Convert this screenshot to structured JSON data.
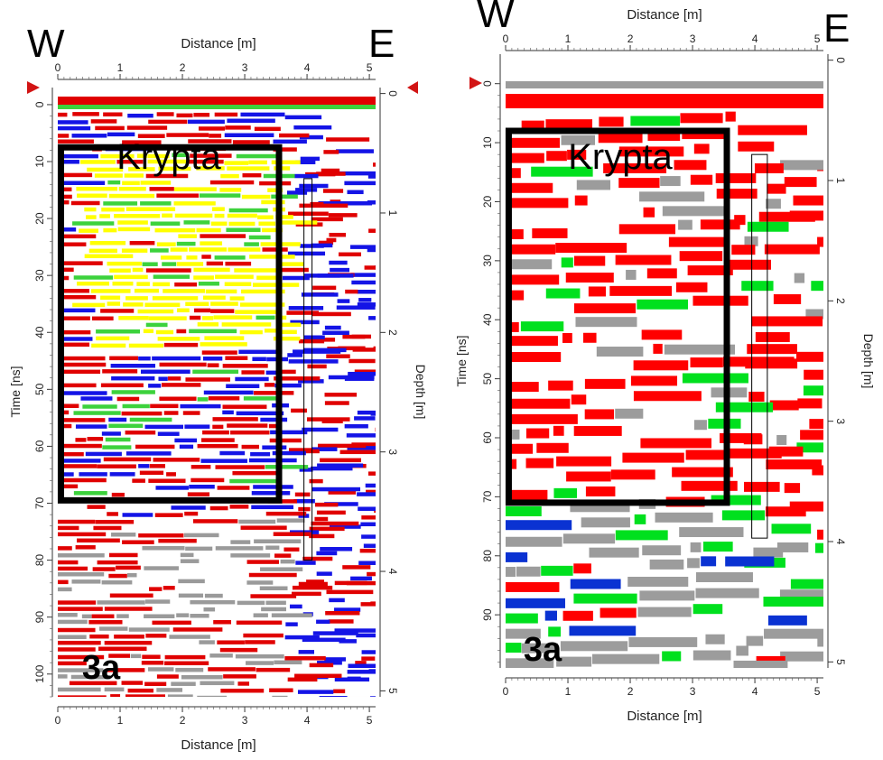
{
  "chart_data": [
    {
      "type": "heatmap",
      "xlabel": "Distance [m]",
      "ylabel_left": "Time [ns]",
      "ylabel_right": "Depth [m]",
      "x_ticks": [
        "0",
        "1",
        "2",
        "3",
        "4",
        "5"
      ],
      "time_ticks": [
        "0",
        "10",
        "20",
        "30",
        "40",
        "50",
        "60",
        "70",
        "80",
        "90",
        "100"
      ],
      "depth_ticks": [
        "0",
        "1",
        "2",
        "3",
        "4",
        "5"
      ],
      "xlim": [
        0,
        5.1
      ],
      "time_lim": [
        -3,
        104
      ],
      "depth_lim": [
        -0.05,
        5.05
      ],
      "west_label": "W",
      "east_label": "E",
      "box_label": "Krypta",
      "box": {
        "x0": 0.05,
        "x1": 3.55,
        "t0": 7.5,
        "t1": 69.5
      },
      "trace_box": {
        "x0": 3.95,
        "x1": 4.08,
        "t0": 13,
        "t1": 80
      },
      "panel_tag": "3a",
      "palette": [
        "#e00000",
        "#1414e6",
        "#ffff00",
        "#3cd23c",
        "#9a9a9a",
        "#ffffff"
      ]
    },
    {
      "type": "heatmap",
      "xlabel": "Distance [m]",
      "ylabel_left": "Time [ns]",
      "ylabel_right": "Depth [m]",
      "x_ticks": [
        "0",
        "1",
        "2",
        "3",
        "4",
        "5"
      ],
      "time_ticks": [
        "0",
        "10",
        "20",
        "30",
        "40",
        "50",
        "60",
        "70",
        "80",
        "90"
      ],
      "depth_ticks": [
        "0",
        "1",
        "2",
        "3",
        "4",
        "5"
      ],
      "xlim": [
        0,
        5.1
      ],
      "time_lim": [
        -5,
        99
      ],
      "depth_lim": [
        -0.05,
        5.05
      ],
      "west_label": "W",
      "east_label": "E",
      "box_label": "Krypta",
      "box": {
        "x0": 0.05,
        "x1": 3.55,
        "t0": 8,
        "t1": 71
      },
      "trace_box": {
        "x0": 3.95,
        "x1": 4.2,
        "t0": 12,
        "t1": 77
      },
      "panel_tag": "3a",
      "palette": [
        "#ff0000",
        "#0a32d2",
        "#00e01e",
        "#9c9c9c",
        "#ffffff"
      ]
    }
  ]
}
